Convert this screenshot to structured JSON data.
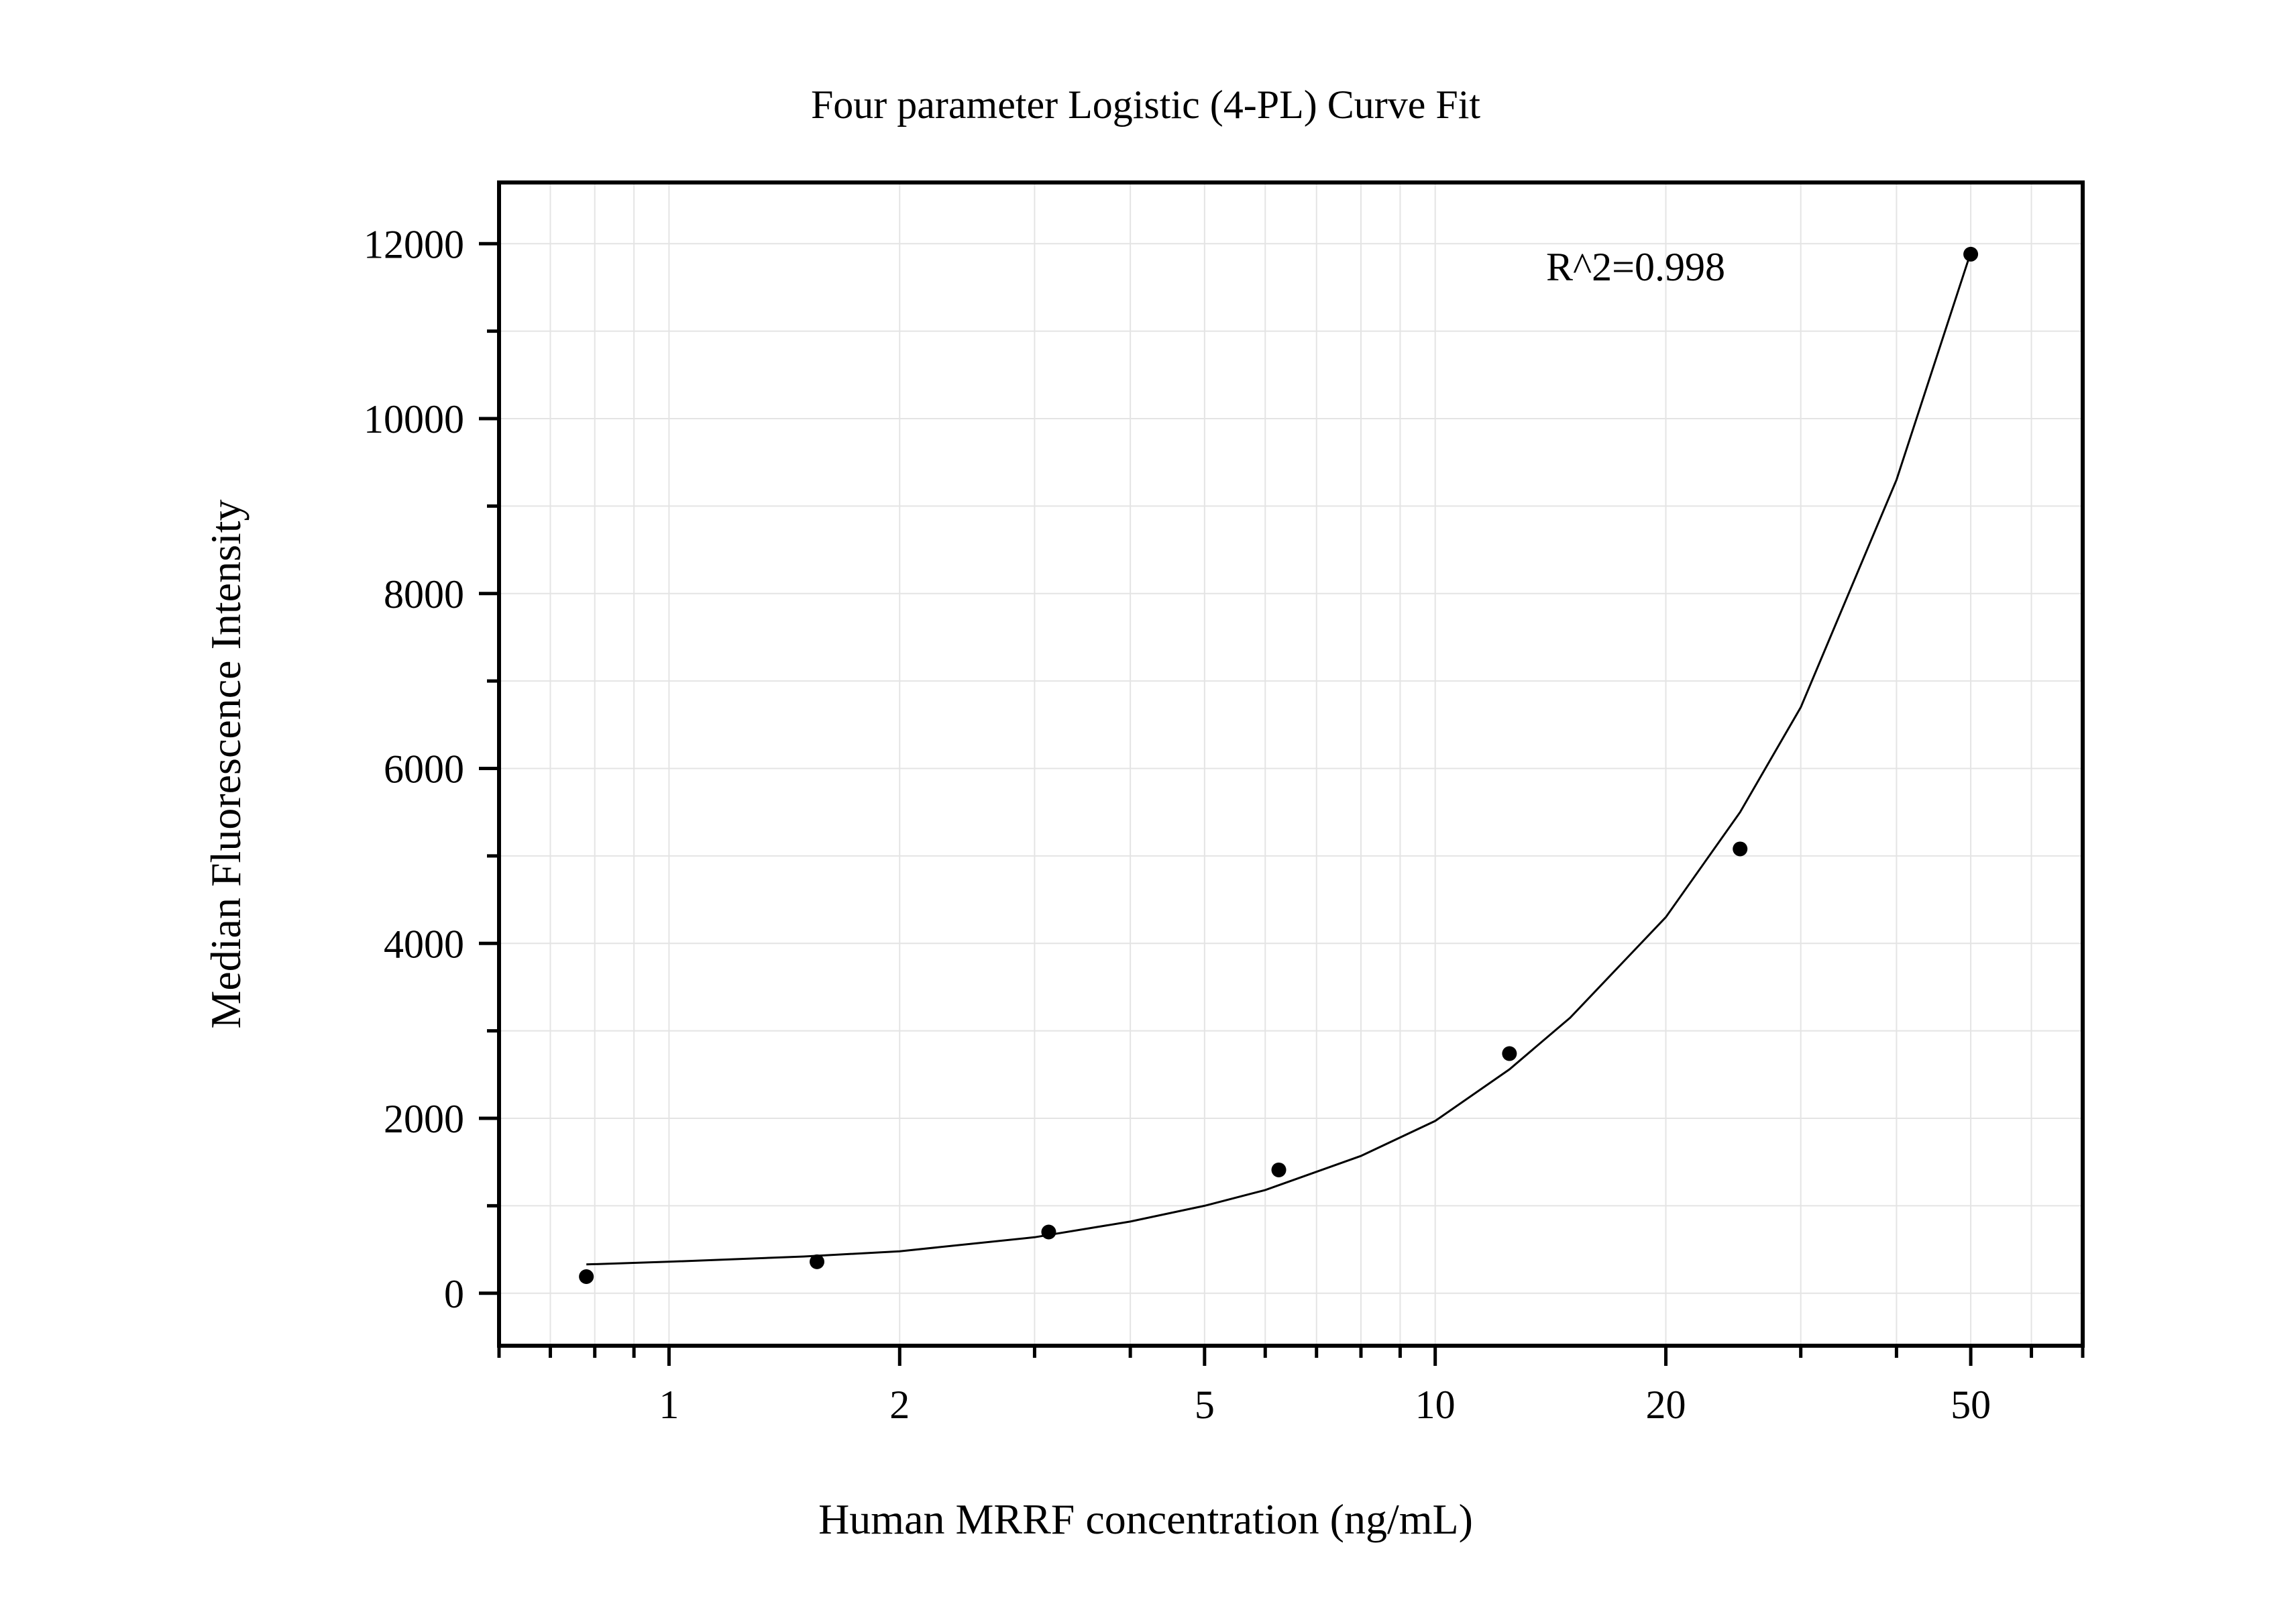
{
  "chart_data": {
    "type": "scatter",
    "title": "Four parameter Logistic (4-PL) Curve Fit",
    "xlabel": "Human MRRF concentration (ng/mL)",
    "ylabel": "Median Fluorescence Intensity",
    "x_scale": "log",
    "xlim": [
      0.6,
      70
    ],
    "ylim": [
      -600,
      12700
    ],
    "x_ticks": [
      1,
      2,
      5,
      10,
      20,
      50
    ],
    "x_tick_labels": [
      "1",
      "2",
      "5",
      "10",
      "20",
      "50"
    ],
    "y_ticks": [
      0,
      2000,
      4000,
      6000,
      8000,
      10000,
      12000
    ],
    "y_tick_labels": [
      "0",
      "2000",
      "4000",
      "6000",
      "8000",
      "10000",
      "12000"
    ],
    "grid": true,
    "series": [
      {
        "type": "scatter",
        "x": [
          0.78,
          1.56,
          3.13,
          6.25,
          12.5,
          25,
          50
        ],
        "y": [
          190,
          360,
          700,
          1410,
          2740,
          5080,
          11880
        ]
      },
      {
        "type": "line",
        "x": [
          0.78,
          1,
          1.5,
          2,
          3,
          4,
          5,
          6,
          8,
          10,
          12.5,
          15,
          20,
          25,
          30,
          40,
          50
        ],
        "y": [
          330,
          360,
          420,
          480,
          640,
          820,
          1000,
          1180,
          1570,
          1970,
          2560,
          3150,
          4300,
          5500,
          6700,
          9300,
          11900
        ]
      }
    ],
    "annotations": [
      {
        "text": "R^2=0.998"
      }
    ],
    "colors": {
      "points": "#000000",
      "curve": "#000000",
      "grid": "#e4e4e4",
      "frame": "#000000"
    }
  }
}
